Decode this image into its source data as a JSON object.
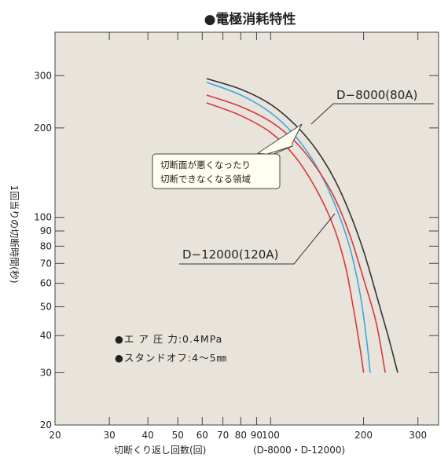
{
  "chart_data": {
    "type": "line",
    "title": "●電極消耗特性",
    "xlabel": "切断くり返し回数(回)",
    "xlabel_note": "(D-8000・D-12000)",
    "ylabel": "1回当りの切断時間(秒)",
    "x_scale": "log",
    "y_scale": "log",
    "xlim": [
      20,
      350
    ],
    "ylim": [
      20,
      420
    ],
    "x_ticks": [
      20,
      30,
      40,
      50,
      60,
      70,
      80,
      90,
      100,
      200,
      300
    ],
    "y_ticks": [
      20,
      30,
      40,
      50,
      60,
      70,
      80,
      90,
      100,
      200,
      300
    ],
    "grid": false,
    "background": "#e8e4dc",
    "series": [
      {
        "name": "D-8000(80A)",
        "color": "#333333",
        "points": [
          [
            62,
            293
          ],
          [
            80,
            270
          ],
          [
            100,
            240
          ],
          [
            120,
            205
          ],
          [
            140,
            170
          ],
          [
            160,
            136
          ],
          [
            180,
            104
          ],
          [
            200,
            77
          ],
          [
            220,
            55
          ],
          [
            240,
            40
          ],
          [
            258,
            30
          ]
        ]
      },
      {
        "name": "D-8000(80A)",
        "color": "#3aa8dc",
        "points": [
          [
            62,
            285
          ],
          [
            80,
            258
          ],
          [
            100,
            225
          ],
          [
            120,
            188
          ],
          [
            140,
            150
          ],
          [
            160,
            113
          ],
          [
            180,
            80
          ],
          [
            195,
            55
          ],
          [
            205,
            38
          ],
          [
            210,
            30
          ]
        ]
      },
      {
        "name": "D-12000(120A)",
        "color": "#d83838",
        "points": [
          [
            62,
            258
          ],
          [
            80,
            236
          ],
          [
            100,
            210
          ],
          [
            120,
            180
          ],
          [
            140,
            148
          ],
          [
            160,
            118
          ],
          [
            180,
            88
          ],
          [
            200,
            62
          ],
          [
            220,
            44
          ],
          [
            235,
            30
          ]
        ]
      },
      {
        "name": "D-12000(120A)",
        "color": "#d83838",
        "points": [
          [
            62,
            243
          ],
          [
            80,
            220
          ],
          [
            100,
            193
          ],
          [
            120,
            160
          ],
          [
            140,
            125
          ],
          [
            160,
            93
          ],
          [
            175,
            68
          ],
          [
            185,
            50
          ],
          [
            195,
            36
          ],
          [
            200,
            30
          ]
        ]
      }
    ],
    "annotations": {
      "d8000_label": "D−8000(80A)",
      "d12000_label": "D−12000(120A)",
      "region_line1": "切断面が悪くなったり",
      "region_line2": "切断できなくなる領域",
      "condition_pressure": "●エ ア 圧 力:0.4MPa",
      "condition_standoff": "●スタンドオフ:4〜5㎜"
    }
  }
}
